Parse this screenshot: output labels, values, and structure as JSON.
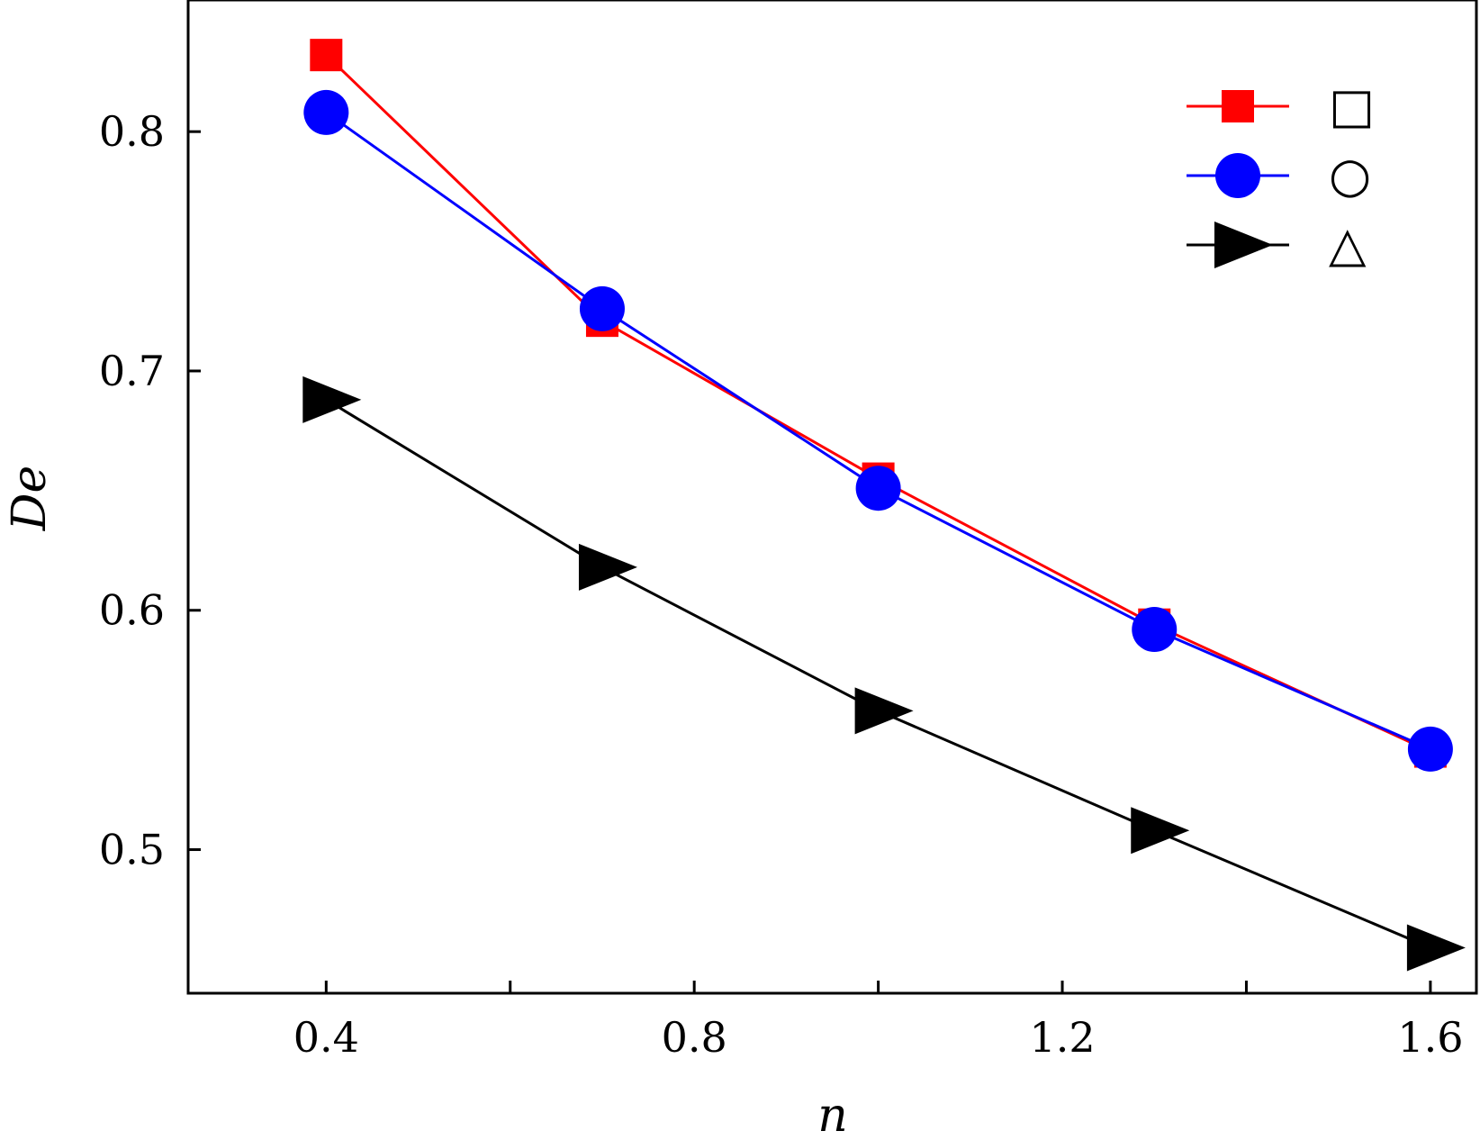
{
  "chart_data": {
    "type": "line",
    "xlabel": "n",
    "ylabel": "De",
    "xlim": [
      0.25,
      1.65
    ],
    "ylim": [
      0.44,
      0.855
    ],
    "xticks_major": [
      0.4,
      0.8,
      1.2,
      1.6
    ],
    "xticks_minor": [
      0.6,
      1.0,
      1.4
    ],
    "yticks": [
      0.5,
      0.6,
      0.7,
      0.8
    ],
    "xtick_labels": [
      "0.4",
      "0.8",
      "1.2",
      "1.6"
    ],
    "ytick_labels": [
      "0.5",
      "0.6",
      "0.7",
      "0.8"
    ],
    "x": [
      0.4,
      0.7,
      1.0,
      1.3,
      1.6
    ],
    "legend_position": "top-right",
    "grid": false,
    "series": [
      {
        "name": "□",
        "color": "#ff0000",
        "marker": "square",
        "values": [
          0.832,
          0.721,
          0.655,
          0.594,
          0.541
        ]
      },
      {
        "name": "○",
        "color": "#0000ff",
        "marker": "circle",
        "values": [
          0.808,
          0.726,
          0.651,
          0.592,
          0.542
        ]
      },
      {
        "name": "△",
        "color": "#000000",
        "marker": "triangle-right",
        "values": [
          0.688,
          0.618,
          0.558,
          0.508,
          0.459
        ]
      }
    ]
  }
}
